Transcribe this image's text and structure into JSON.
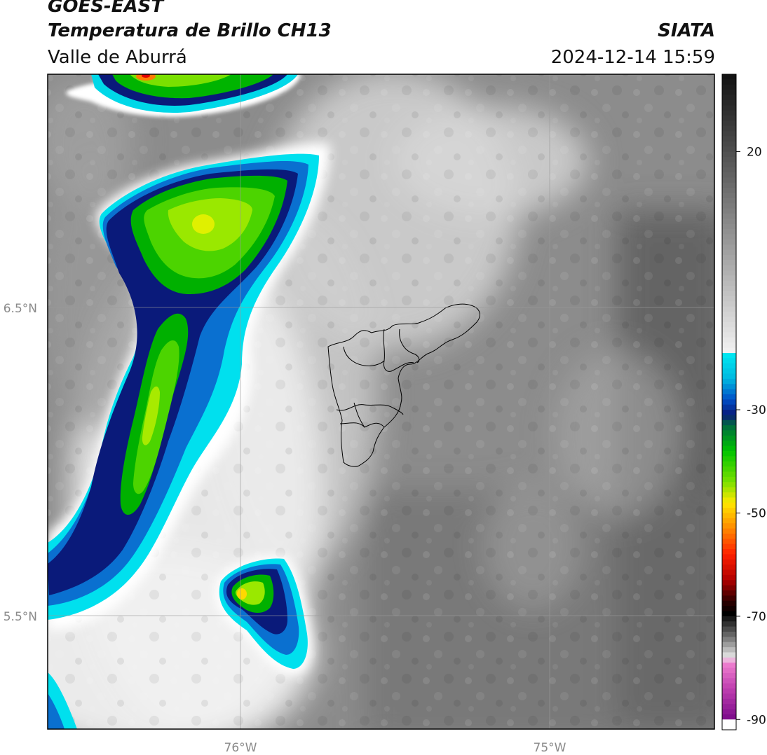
{
  "header": {
    "title": "GOES-EAST",
    "subtitle": "Temperatura de Brillo CH13",
    "region": "Valle de Aburrá",
    "org": "SIATA",
    "datetime": "2024-12-14 15:59"
  },
  "map": {
    "lon_range": [
      -76.62,
      -74.45
    ],
    "lat_range": [
      5.12,
      7.25
    ],
    "lon_ticks": [
      {
        "value": -76.0,
        "label": "76°W"
      },
      {
        "value": -75.0,
        "label": "75°W"
      }
    ],
    "lat_ticks": [
      {
        "value": 6.5,
        "label": "6.5°N"
      },
      {
        "value": 5.5,
        "label": "5.5°N"
      }
    ],
    "variable": "brightness temperature (°C)"
  },
  "colorbar": {
    "range": [
      -92,
      35
    ],
    "ticks": [
      20,
      -30,
      -50,
      -70,
      -90
    ],
    "tick_labels": [
      "20",
      "-30",
      "-50",
      "-70",
      "-90"
    ]
  },
  "colors": {
    "gray_warm": "#3a3a3a",
    "gray_cold": "#f2f2f2",
    "cyan": "#00e5f0",
    "blue": "#0050c8",
    "navy": "#0a1a7a",
    "green": "#00c400",
    "yellow": "#ffe800",
    "orange": "#ff8a00",
    "red": "#e00000",
    "pink": "#e060c8",
    "purple": "#7a0a8a"
  },
  "chart_data": {
    "type": "heatmap",
    "title": "Temperatura de Brillo CH13",
    "xlabel": "",
    "ylabel": "",
    "x_ticks": [
      "76°W",
      "75°W"
    ],
    "y_ticks": [
      "6.5°N",
      "5.5°N"
    ],
    "colorbar_ticks": [
      20,
      -30,
      -50,
      -70,
      -90
    ],
    "features": [
      {
        "name": "cloud-top-north",
        "center": [
          -76.3,
          7.21
        ],
        "min_temp": -62
      },
      {
        "name": "convective-band-west",
        "center": [
          -76.2,
          6.62
        ],
        "min_temp": -45
      },
      {
        "name": "convective-cell-south",
        "center": [
          -75.98,
          5.6
        ],
        "min_temp": -47
      }
    ]
  }
}
